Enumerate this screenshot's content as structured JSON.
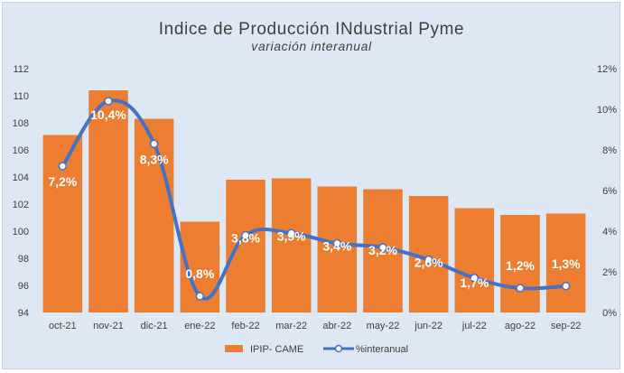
{
  "chart_data": {
    "type": "bar+line",
    "title": "Indice de Producción INdustrial Pyme",
    "subtitle": "variación interanual",
    "categories": [
      "oct-21",
      "nov-21",
      "dic-21",
      "ene-22",
      "feb-22",
      "mar-22",
      "abr-22",
      "may-22",
      "jun-22",
      "jul-22",
      "ago-22",
      "sep-22"
    ],
    "series": [
      {
        "name": "IPIP- CAME",
        "type": "bar",
        "axis": "left",
        "color": "#ed7d31",
        "values": [
          107.1,
          110.4,
          108.3,
          100.7,
          103.8,
          103.9,
          103.3,
          103.1,
          102.6,
          101.7,
          101.2,
          101.3
        ]
      },
      {
        "name": "%interanual",
        "type": "line",
        "axis": "right",
        "color": "#4472c4",
        "values": [
          7.2,
          10.4,
          8.3,
          0.8,
          3.8,
          3.9,
          3.4,
          3.2,
          2.6,
          1.7,
          1.2,
          1.3
        ],
        "data_labels": [
          "7,2%",
          "10,4%",
          "8,3%",
          "0,8%",
          "3,8%",
          "3,9%",
          "3,4%",
          "3,2%",
          "2,6%",
          "1,7%",
          "1,2%",
          "1,3%"
        ]
      }
    ],
    "y_left": {
      "min": 94,
      "max": 112,
      "ticks": [
        "94",
        "96",
        "98",
        "100",
        "102",
        "104",
        "106",
        "108",
        "110",
        "112"
      ]
    },
    "y_right": {
      "min": 0,
      "max": 12,
      "ticks": [
        "0%",
        "2%",
        "4%",
        "6%",
        "8%",
        "10%",
        "12%"
      ]
    },
    "grid": false,
    "legend_position": "bottom",
    "legend": [
      "IPIP- CAME",
      "%interanual"
    ],
    "background": "#dde8f4"
  }
}
